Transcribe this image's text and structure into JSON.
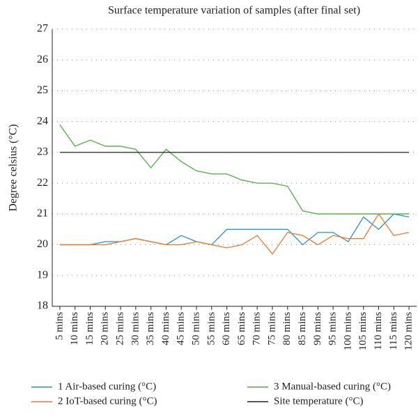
{
  "chart_data": {
    "type": "line",
    "title": "Surface temperature variation of samples (after final set)",
    "y_label": "Degree celsius (°C)",
    "categories": [
      "5 mins",
      "10 mins",
      "15 mins",
      "20 mins",
      "25 mins",
      "30 mins",
      "35 mins",
      "40 mins",
      "45 mins",
      "50 mins",
      "55 mins",
      "60 mins",
      "65 mins",
      "70 mins",
      "75 mins",
      "80 mins",
      "85 mins",
      "90 mins",
      "95 mins",
      "100 mins",
      "105 mins",
      "110 mins",
      "115 mins",
      "120 mins"
    ],
    "series": [
      {
        "name": "1 Air-based curing (°C)",
        "color": "#2b8fcb",
        "values": [
          20,
          20,
          20,
          20.1,
          20.1,
          20.2,
          20.1,
          20.0,
          20.3,
          20.1,
          20.0,
          20.5,
          20.5,
          20.5,
          20.5,
          20.5,
          20.0,
          20.4,
          20.4,
          20.1,
          20.9,
          20.5,
          21.0,
          20.9
        ]
      },
      {
        "name": "2 IoT-based curing (°C)",
        "color": "#ea7a2e",
        "values": [
          20,
          20,
          20,
          20,
          20.1,
          20.2,
          20.1,
          20.0,
          20.0,
          20.1,
          20.0,
          19.9,
          20.0,
          20.3,
          19.7,
          20.4,
          20.3,
          20.0,
          20.3,
          20.2,
          20.2,
          21.0,
          20.3,
          20.4
        ]
      },
      {
        "name": "3 Manual-based curing (°C)",
        "color": "#4cae3f",
        "values": [
          23.9,
          23.2,
          23.4,
          23.2,
          23.2,
          23.1,
          22.5,
          23.1,
          22.7,
          22.4,
          22.3,
          22.3,
          22.1,
          22.0,
          22.0,
          21.9,
          21.1,
          21.0,
          21.0,
          21.0,
          21.0,
          21.0,
          21.0,
          21.0
        ]
      },
      {
        "name": "Site temperature (°C)",
        "color": "#222222",
        "values": [
          23,
          23,
          23,
          23,
          23,
          23,
          23,
          23,
          23,
          23,
          23,
          23,
          23,
          23,
          23,
          23,
          23,
          23,
          23,
          23,
          23,
          23,
          23,
          23
        ]
      }
    ],
    "ylim": [
      18,
      27
    ],
    "yticks": [
      18,
      19,
      20,
      21,
      22,
      23,
      24,
      25,
      26,
      27
    ],
    "grid": true
  }
}
